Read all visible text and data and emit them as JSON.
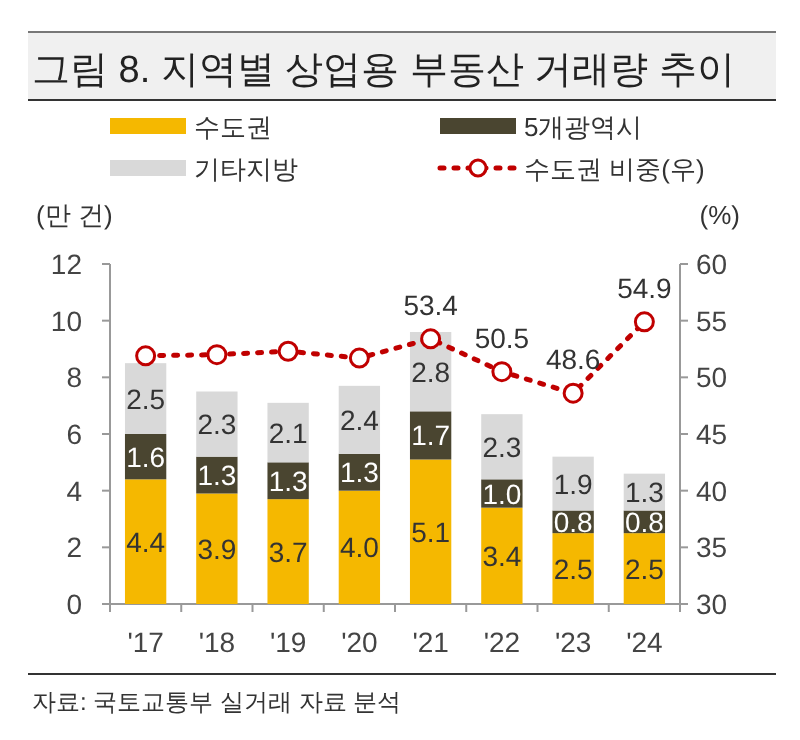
{
  "chart_data": {
    "type": "bar",
    "title": "그림 8. 지역별 상업용 부동산 거래량 추이",
    "ylabel": "(만 건)",
    "y2label": "(%)",
    "categories": [
      "'17",
      "'18",
      "'19",
      "'20",
      "'21",
      "'22",
      "'23",
      "'24"
    ],
    "stacked": true,
    "legend": "top",
    "grid": false,
    "ylim": [
      0,
      12
    ],
    "yticks": [
      0,
      2,
      4,
      6,
      8,
      10,
      12
    ],
    "y2lim": [
      30,
      60
    ],
    "y2ticks": [
      30,
      35,
      40,
      45,
      50,
      55,
      60
    ],
    "series": [
      {
        "name": "수도권",
        "color": "#f5b800",
        "values": [
          4.4,
          3.9,
          3.7,
          4.0,
          5.1,
          3.4,
          2.5,
          2.5
        ],
        "value_labels": [
          "4.4",
          "3.9",
          "3.7",
          "4.0",
          "5.1",
          "3.4",
          "2.5",
          "2.5"
        ]
      },
      {
        "name": "5개광역시",
        "color": "#4a4530",
        "values": [
          1.6,
          1.3,
          1.3,
          1.3,
          1.7,
          1.0,
          0.8,
          0.8
        ],
        "value_labels": [
          "1.6",
          "1.3",
          "1.3",
          "1.3",
          "1.7",
          "1.0",
          "0.8",
          "0.8"
        ]
      },
      {
        "name": "기타지방",
        "color": "#d9d9d9",
        "values": [
          2.5,
          2.3,
          2.1,
          2.4,
          2.8,
          2.3,
          1.9,
          1.3
        ],
        "value_labels": [
          "2.5",
          "2.3",
          "2.1",
          "2.4",
          "2.8",
          "2.3",
          "1.9",
          "1.3"
        ]
      },
      {
        "name": "수도권 비중(우)",
        "type": "line",
        "axis": "y2",
        "color": "#c00000",
        "line_style": "dotted",
        "marker": "circle",
        "values": [
          51.9,
          52.0,
          52.3,
          51.7,
          53.4,
          50.5,
          48.6,
          54.9
        ],
        "value_labels": [
          null,
          null,
          null,
          null,
          "53.4",
          "50.5",
          "48.6",
          "54.9"
        ]
      }
    ],
    "annotations": [
      "자료: 국토교통부 실거래 자료 분석"
    ]
  }
}
